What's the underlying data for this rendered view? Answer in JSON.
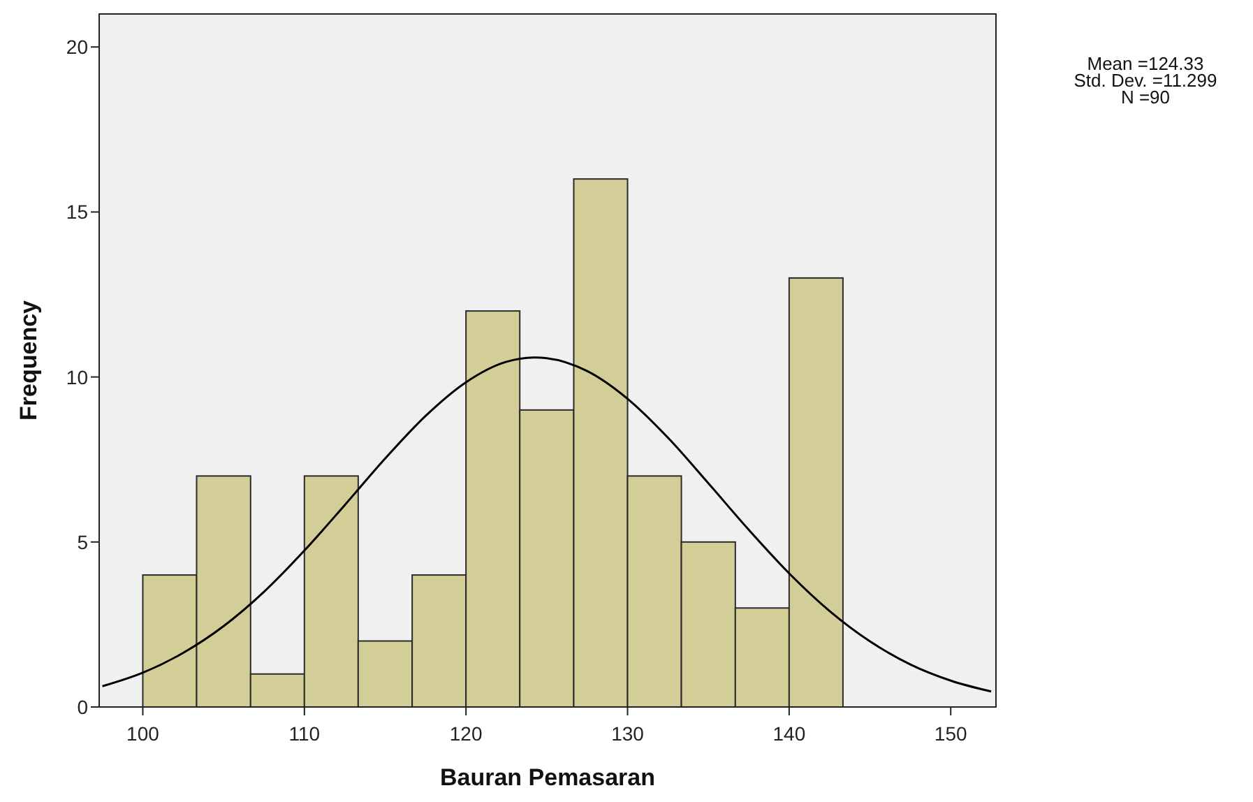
{
  "chart_data": {
    "type": "histogram",
    "xlabel": "Bauran Pemasaran",
    "ylabel": "Frequency",
    "bins": [
      100,
      103.33,
      106.67,
      110,
      113.33,
      116.67,
      120,
      123.33,
      126.67,
      130,
      133.33,
      136.67,
      140,
      143.33
    ],
    "values": [
      4,
      7,
      1,
      7,
      2,
      4,
      12,
      9,
      16,
      7,
      5,
      3,
      13
    ],
    "color": "#d3ce98",
    "series": [
      {
        "type": "line",
        "color": "#000000",
        "x": [
          97.5,
          100,
          102.5,
          105,
          107.5,
          110,
          112.5,
          115,
          117.5,
          120,
          122.5,
          124.33,
          125,
          127.5,
          130,
          132.5,
          135,
          137.5,
          140,
          142.5,
          145,
          147.5,
          150,
          152.5
        ],
        "values": [
          0.63,
          1.04,
          1.64,
          2.45,
          3.49,
          4.74,
          6.12,
          7.53,
          8.82,
          9.84,
          10.46,
          10.59,
          10.57,
          10.18,
          9.34,
          8.16,
          6.78,
          5.37,
          4.05,
          2.91,
          1.99,
          1.29,
          0.8,
          0.47
        ]
      }
    ],
    "xlim": [
      97.3,
      152.8
    ],
    "ylim": [
      0,
      21
    ],
    "xticks": [
      100,
      110,
      120,
      130,
      140,
      150
    ],
    "yticks": [
      0,
      5,
      10,
      15,
      20
    ],
    "grid": false,
    "marker": "none",
    "annotations": [
      "Mean =124.33",
      "Std. Dev. =11.299",
      "N =90"
    ]
  }
}
